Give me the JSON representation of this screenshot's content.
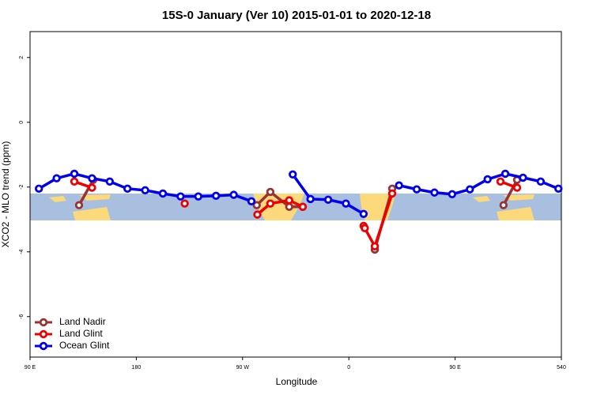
{
  "chart_data": {
    "type": "line",
    "title": "15S-0 January (Ver 10)   2015-01-01 to 2020-12-18",
    "xlabel": "Longitude",
    "ylabel": "XCO2 - MLO trend (ppm)",
    "xlim": [
      90,
      540
    ],
    "ylim": [
      -7.25,
      2.8
    ],
    "xticks": [
      {
        "value": 90,
        "label": "90 E"
      },
      180,
      {
        "value": 270,
        "label": "90 W"
      },
      {
        "value": 360,
        "label": "0"
      },
      {
        "value": 450,
        "label": "90 E"
      },
      540
    ],
    "yticks": [
      -6,
      -4,
      -2,
      0,
      2
    ],
    "legend": "bottom-left",
    "series": [
      {
        "name": "Land Nadir",
        "color": "#993333",
        "x": [
          131.5,
          143.5,
          210,
          282,
          293.5,
          309.5,
          321,
          350,
          382,
          396.7,
          450,
          491,
          502.5
        ],
        "values": [
          -2.56,
          -1.78,
          null,
          -2.56,
          -2.15,
          -2.61,
          -2.61,
          null,
          -3.93,
          -2.05,
          null,
          -2.56,
          -1.78
        ]
      },
      {
        "name": "Land Glint",
        "color": "#ee0000",
        "x": [
          127.5,
          142.5,
          180,
          221,
          250,
          282.5,
          293.5,
          309.5,
          321,
          350,
          372.5,
          373.5,
          382,
          396.7,
          450,
          488.4,
          502.5
        ],
        "values": [
          -1.83,
          -2.02,
          null,
          -2.51,
          null,
          -2.85,
          -2.51,
          -2.41,
          -2.61,
          null,
          -3.2,
          -3.27,
          -3.83,
          -2.2,
          null,
          -1.83,
          -2.02
        ]
      },
      {
        "name": "Ocean Glint",
        "color": "#0000ee",
        "x": [
          97.5,
          112.5,
          127.5,
          142.5,
          157.5,
          172.5,
          187.5,
          202.5,
          217.5,
          232.5,
          247.5,
          262.5,
          277.5,
          297.5,
          312.5,
          327.5,
          342.5,
          357.5,
          372.5,
          387.5,
          402.5,
          417.5,
          432.5,
          447.5,
          462.5,
          477.5,
          492.5,
          507.5,
          522.5,
          537.5
        ],
        "values": [
          -2.05,
          -1.73,
          -1.59,
          -1.73,
          -1.83,
          -2.05,
          -2.1,
          -2.2,
          -2.29,
          -2.29,
          -2.27,
          -2.24,
          -2.44,
          null,
          -1.61,
          -2.37,
          -2.39,
          -2.51,
          -2.83,
          null,
          -1.95,
          -2.07,
          -2.17,
          -2.22,
          -2.07,
          -1.76,
          -1.59,
          -1.71,
          -1.83,
          -2.05
        ]
      }
    ]
  }
}
